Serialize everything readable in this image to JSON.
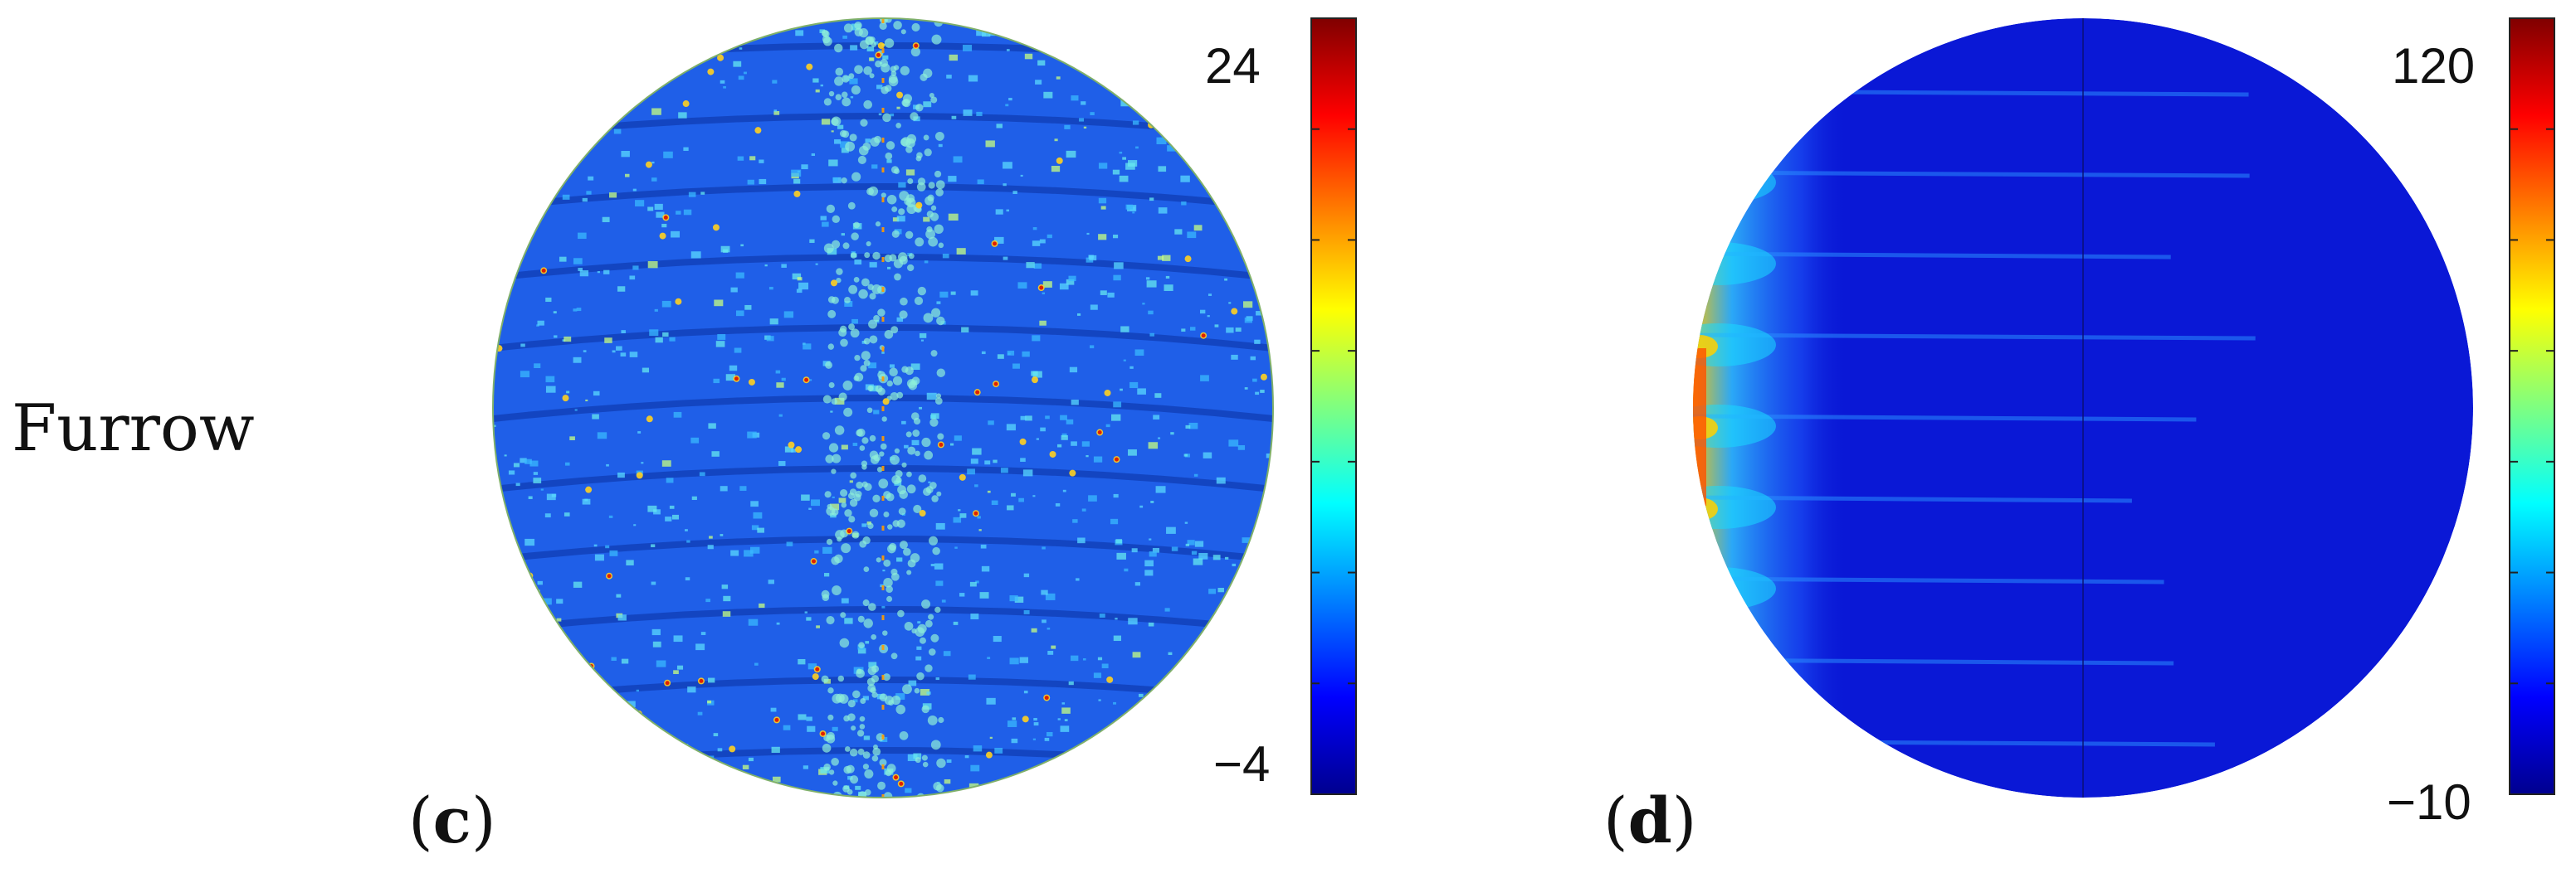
{
  "row_label": "Furrow",
  "panels": [
    {
      "letter": "c",
      "colorbar": {
        "max_label": "24",
        "min_label": "−4",
        "max": 24,
        "min": -4
      }
    },
    {
      "letter": "d",
      "colorbar": {
        "max_label": "120",
        "min_label": "−10",
        "max": 120,
        "min": -10
      }
    }
  ],
  "colors": {
    "colormap": [
      "#00008f",
      "#0000ff",
      "#00ffff",
      "#ffff00",
      "#ff0000",
      "#800000"
    ],
    "background_c": "#1f5fe8",
    "background_d": "#0a18d6"
  }
}
